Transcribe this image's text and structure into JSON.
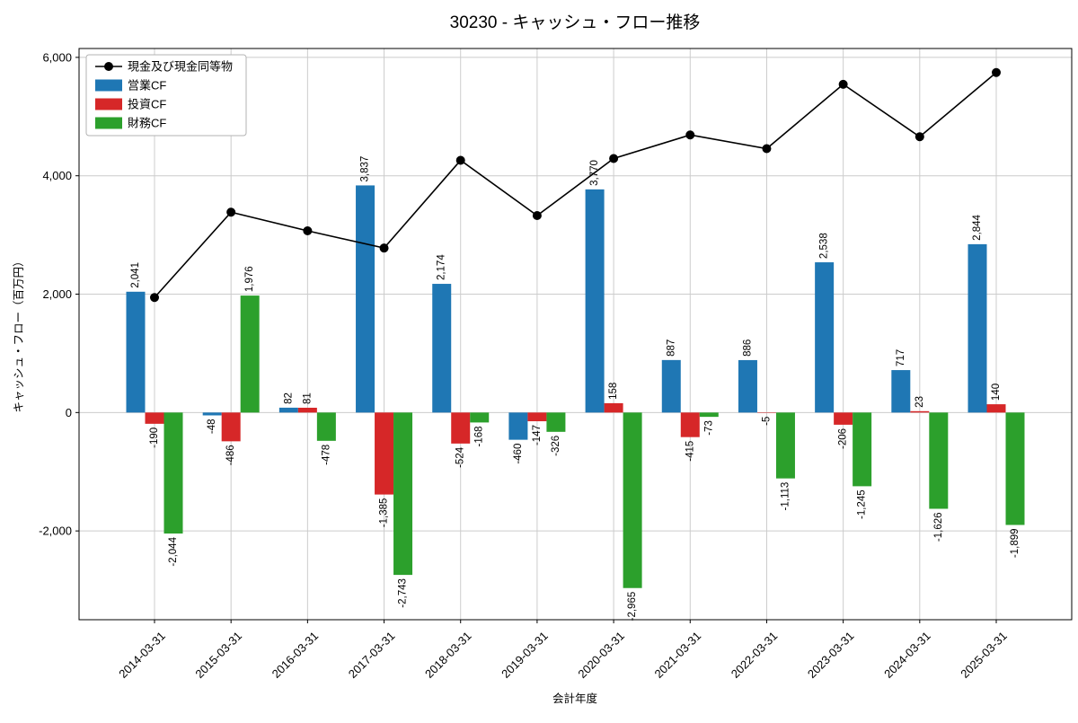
{
  "chart_data": {
    "type": "bar+line",
    "title": "30230 - キャッシュ・フロー推移",
    "xlabel": "会計年度",
    "ylabel": "キャッシュ・フロー（百万円）",
    "ylim": [
      -3500,
      6150
    ],
    "yticks": [
      -2000,
      0,
      2000,
      4000,
      6000
    ],
    "grid": true,
    "legend_position": "upper left",
    "categories": [
      "2014-03-31",
      "2015-03-31",
      "2016-03-31",
      "2017-03-31",
      "2018-03-31",
      "2019-03-31",
      "2020-03-31",
      "2021-03-31",
      "2022-03-31",
      "2023-03-31",
      "2024-03-31",
      "2025-03-31"
    ],
    "bar_series": [
      {
        "name": "営業CF",
        "color": "#1f77b4",
        "values": [
          2041,
          -48,
          82,
          3837,
          2174,
          -460,
          3770,
          887,
          886,
          2538,
          717,
          2844
        ]
      },
      {
        "name": "投資CF",
        "color": "#d62728",
        "values": [
          -190,
          -486,
          81,
          -1385,
          -524,
          -147,
          158,
          -415,
          -5,
          -206,
          23,
          140
        ]
      },
      {
        "name": "財務CF",
        "color": "#2ca02c",
        "values": [
          -2044,
          1976,
          -478,
          -2743,
          -168,
          -326,
          -2965,
          -73,
          -1113,
          -1245,
          -1626,
          -1899
        ]
      }
    ],
    "line_series": {
      "name": "現金及び現金同等物",
      "color": "#000000",
      "values": [
        1943,
        3385,
        3070,
        2779,
        4261,
        3328,
        4291,
        4690,
        4458,
        5545,
        4659,
        5744
      ]
    }
  }
}
